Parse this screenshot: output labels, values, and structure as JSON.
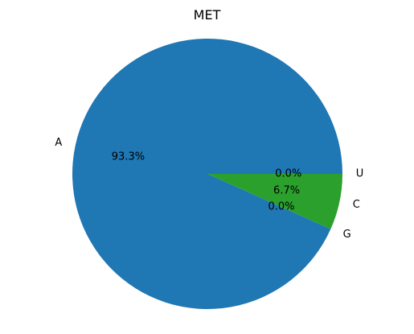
{
  "chart_data": {
    "type": "pie",
    "title": "MET",
    "labels": [
      "A",
      "G",
      "C",
      "U"
    ],
    "values": [
      93.3,
      0.0,
      6.7,
      0.0
    ],
    "percent_labels": [
      "93.3%",
      "0.0%",
      "6.7%",
      "0.0%"
    ],
    "colors": [
      "#1f77b4",
      "#ff7f0e",
      "#2ca02c",
      "#d62728"
    ],
    "start_angle_deg": 0,
    "direction": "counterclockwise",
    "legend": "none"
  }
}
